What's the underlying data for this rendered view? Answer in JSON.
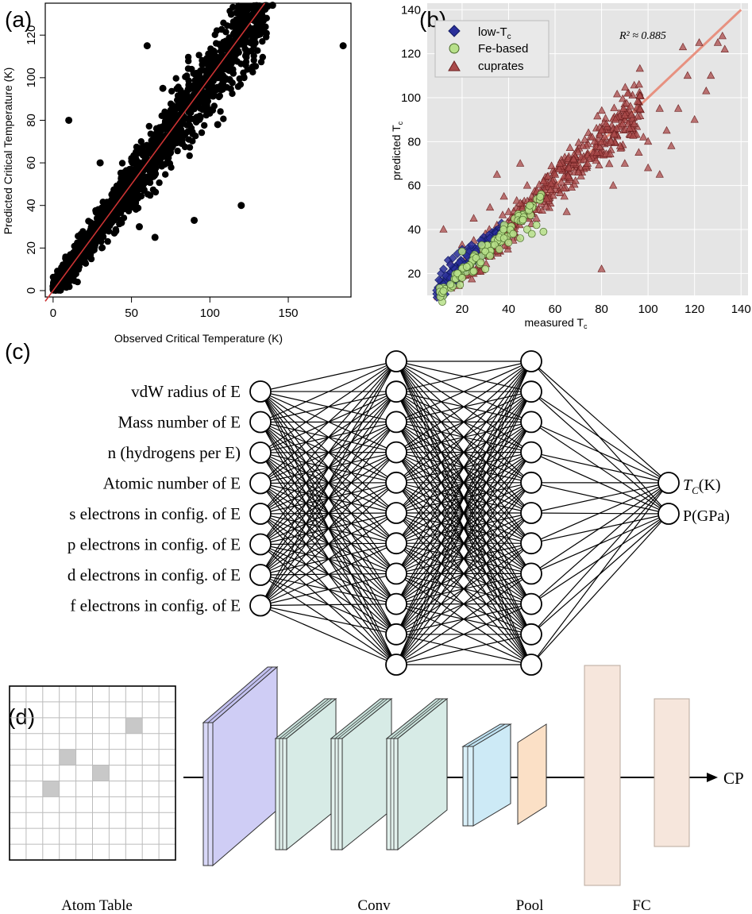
{
  "panel_a": {
    "label": "(a)",
    "xlabel": "Observed Critical Temperature (K)",
    "ylabel": "Predicted Critical Temperature (K)",
    "xticks": [
      "0",
      "50",
      "100",
      "150"
    ],
    "yticks": [
      "0",
      "20",
      "40",
      "60",
      "80",
      "100",
      "120"
    ],
    "colors": {
      "points": "#000000",
      "fit_line": "#cc3333"
    }
  },
  "panel_b": {
    "label": "(b)",
    "xlabel": "measured T",
    "xlabel_sub": "c",
    "ylabel": "predicted T",
    "ylabel_sub": "c",
    "xticks": [
      "20",
      "40",
      "60",
      "80",
      "100",
      "120",
      "140"
    ],
    "yticks": [
      "20",
      "40",
      "60",
      "80",
      "100",
      "120",
      "140"
    ],
    "annotation": "R² ≈ 0.885",
    "legend": [
      {
        "label": "low-T",
        "sub": "c",
        "marker": "diamond",
        "color": "#2a2f9a"
      },
      {
        "label": "Fe-based",
        "marker": "circle",
        "color": "#b7e08a"
      },
      {
        "label": "cuprates",
        "marker": "triangle",
        "color": "#a94a4a"
      }
    ],
    "colors": {
      "background": "#e5e5e5",
      "fit_line": "#e8836e"
    }
  },
  "panel_c": {
    "label": "(c)",
    "inputs": [
      "vdW radius of E",
      "Mass number of E",
      "n (hydrogens per E)",
      "Atomic number of E",
      "s electrons in config. of E",
      "p electrons in config. of E",
      "d electrons in config. of E",
      "f electrons in config. of E"
    ],
    "outputs": [
      "T_C(K)",
      "P(GPa)"
    ],
    "output_display": [
      {
        "main": "T",
        "sub": "C",
        "rest": "(K)"
      },
      {
        "main": "P(GPa)",
        "sub": "",
        "rest": ""
      }
    ]
  },
  "panel_d": {
    "label": "(d)",
    "captions": [
      "Atom Table",
      "Conv",
      "Pool",
      "FC"
    ],
    "output_label": "CP",
    "colors": {
      "big_conv": "#cfcdf5",
      "conv": "#d7ebe6",
      "small_conv": "#cdeaf6",
      "pool": "#fbe0c6",
      "fc": "#f6e6dc",
      "grid_cells": "#c8c8c8"
    }
  },
  "chart_data": [
    {
      "type": "scatter",
      "title": "",
      "xlabel": "Observed Critical Temperature (K)",
      "ylabel": "Predicted Critical Temperature (K)",
      "xlim": [
        -5,
        190
      ],
      "ylim": [
        -3,
        135
      ],
      "series": [
        {
          "points_sample": [
            [
              0,
              2
            ],
            [
              5,
              8
            ],
            [
              10,
              12
            ],
            [
              15,
              18
            ],
            [
              20,
              25
            ],
            [
              25,
              22
            ],
            [
              30,
              33
            ],
            [
              35,
              30
            ],
            [
              40,
              45
            ],
            [
              45,
              40
            ],
            [
              50,
              52
            ],
            [
              55,
              60
            ],
            [
              60,
              58
            ],
            [
              65,
              70
            ],
            [
              70,
              68
            ],
            [
              75,
              80
            ],
            [
              80,
              78
            ],
            [
              85,
              90
            ],
            [
              90,
              88
            ],
            [
              95,
              96
            ],
            [
              100,
              102
            ],
            [
              105,
              100
            ],
            [
              110,
              110
            ],
            [
              115,
              112
            ],
            [
              120,
              122
            ],
            [
              125,
              128
            ],
            [
              130,
              131
            ],
            [
              135,
              133
            ],
            [
              140,
              134
            ],
            [
              185,
              115
            ],
            [
              60,
              115
            ],
            [
              65,
              25
            ],
            [
              90,
              33
            ],
            [
              10,
              80
            ],
            [
              120,
              40
            ],
            [
              30,
              60
            ],
            [
              105,
              78
            ],
            [
              40,
              28
            ],
            [
              70,
              95
            ],
            [
              55,
              30
            ]
          ]
        }
      ],
      "fit_line": [
        [
          -5,
          -5
        ],
        [
          135,
          135
        ]
      ]
    },
    {
      "type": "scatter",
      "title": "",
      "xlabel": "measured Tc",
      "ylabel": "predicted Tc",
      "xlim": [
        5,
        143
      ],
      "ylim": [
        10,
        143
      ],
      "grid": true,
      "legend_position": "top-left",
      "series": [
        {
          "name": "low-Tc",
          "points": [
            [
              10,
              17
            ],
            [
              11,
              20
            ],
            [
              12,
              22
            ],
            [
              13,
              19
            ],
            [
              14,
              26
            ],
            [
              15,
              24
            ],
            [
              16,
              27
            ],
            [
              17,
              22
            ],
            [
              18,
              29
            ],
            [
              19,
              25
            ],
            [
              20,
              31
            ],
            [
              22,
              28
            ],
            [
              24,
              33
            ],
            [
              26,
              30
            ],
            [
              28,
              35
            ],
            [
              30,
              33
            ],
            [
              32,
              36
            ],
            [
              34,
              34
            ],
            [
              36,
              38
            ],
            [
              38,
              36
            ],
            [
              12,
              15
            ],
            [
              15,
              18
            ],
            [
              18,
              21
            ],
            [
              21,
              24
            ]
          ]
        },
        {
          "name": "Fe-based",
          "points": [
            [
              12,
              12
            ],
            [
              15,
              15
            ],
            [
              18,
              20
            ],
            [
              20,
              18
            ],
            [
              22,
              23
            ],
            [
              25,
              21
            ],
            [
              26,
              27
            ],
            [
              28,
              25
            ],
            [
              30,
              30
            ],
            [
              32,
              28
            ],
            [
              34,
              33
            ],
            [
              36,
              31
            ],
            [
              38,
              36
            ],
            [
              40,
              34
            ],
            [
              42,
              38
            ],
            [
              45,
              36
            ],
            [
              48,
              40
            ],
            [
              50,
              38
            ],
            [
              52,
              42
            ],
            [
              55,
              39
            ],
            [
              20,
              30
            ],
            [
              30,
              22
            ]
          ]
        },
        {
          "name": "cuprates",
          "points": [
            [
              12,
              40
            ],
            [
              15,
              25
            ],
            [
              20,
              33
            ],
            [
              25,
              45
            ],
            [
              28,
              30
            ],
            [
              30,
              38
            ],
            [
              32,
              50
            ],
            [
              35,
              42
            ],
            [
              38,
              55
            ],
            [
              40,
              48
            ],
            [
              42,
              35
            ],
            [
              45,
              52
            ],
            [
              48,
              60
            ],
            [
              50,
              55
            ],
            [
              52,
              45
            ],
            [
              55,
              62
            ],
            [
              58,
              58
            ],
            [
              60,
              65
            ],
            [
              62,
              70
            ],
            [
              64,
              55
            ],
            [
              66,
              68
            ],
            [
              68,
              72
            ],
            [
              70,
              66
            ],
            [
              72,
              78
            ],
            [
              74,
              70
            ],
            [
              76,
              82
            ],
            [
              78,
              75
            ],
            [
              80,
              85
            ],
            [
              82,
              88
            ],
            [
              84,
              80
            ],
            [
              86,
              90
            ],
            [
              88,
              78
            ],
            [
              90,
              92
            ],
            [
              92,
              86
            ],
            [
              94,
              88
            ],
            [
              96,
              75
            ],
            [
              98,
              82
            ],
            [
              100,
              80
            ],
            [
              105,
              95
            ],
            [
              108,
              85
            ],
            [
              110,
              78
            ],
            [
              113,
              95
            ],
            [
              115,
              123
            ],
            [
              117,
              110
            ],
            [
              120,
              90
            ],
            [
              122,
              125
            ],
            [
              125,
              103
            ],
            [
              127,
              110
            ],
            [
              130,
              125
            ],
            [
              132,
              128
            ],
            [
              133,
              122
            ],
            [
              80,
              22
            ],
            [
              90,
              70
            ],
            [
              105,
              65
            ],
            [
              35,
              65
            ],
            [
              45,
              70
            ],
            [
              85,
              60
            ],
            [
              100,
              68
            ],
            [
              25,
              35
            ],
            [
              65,
              48
            ]
          ]
        }
      ],
      "fit_line": [
        [
          8,
          8
        ],
        [
          140,
          140
        ]
      ],
      "annotation": "R² ≈ 0.885"
    }
  ]
}
